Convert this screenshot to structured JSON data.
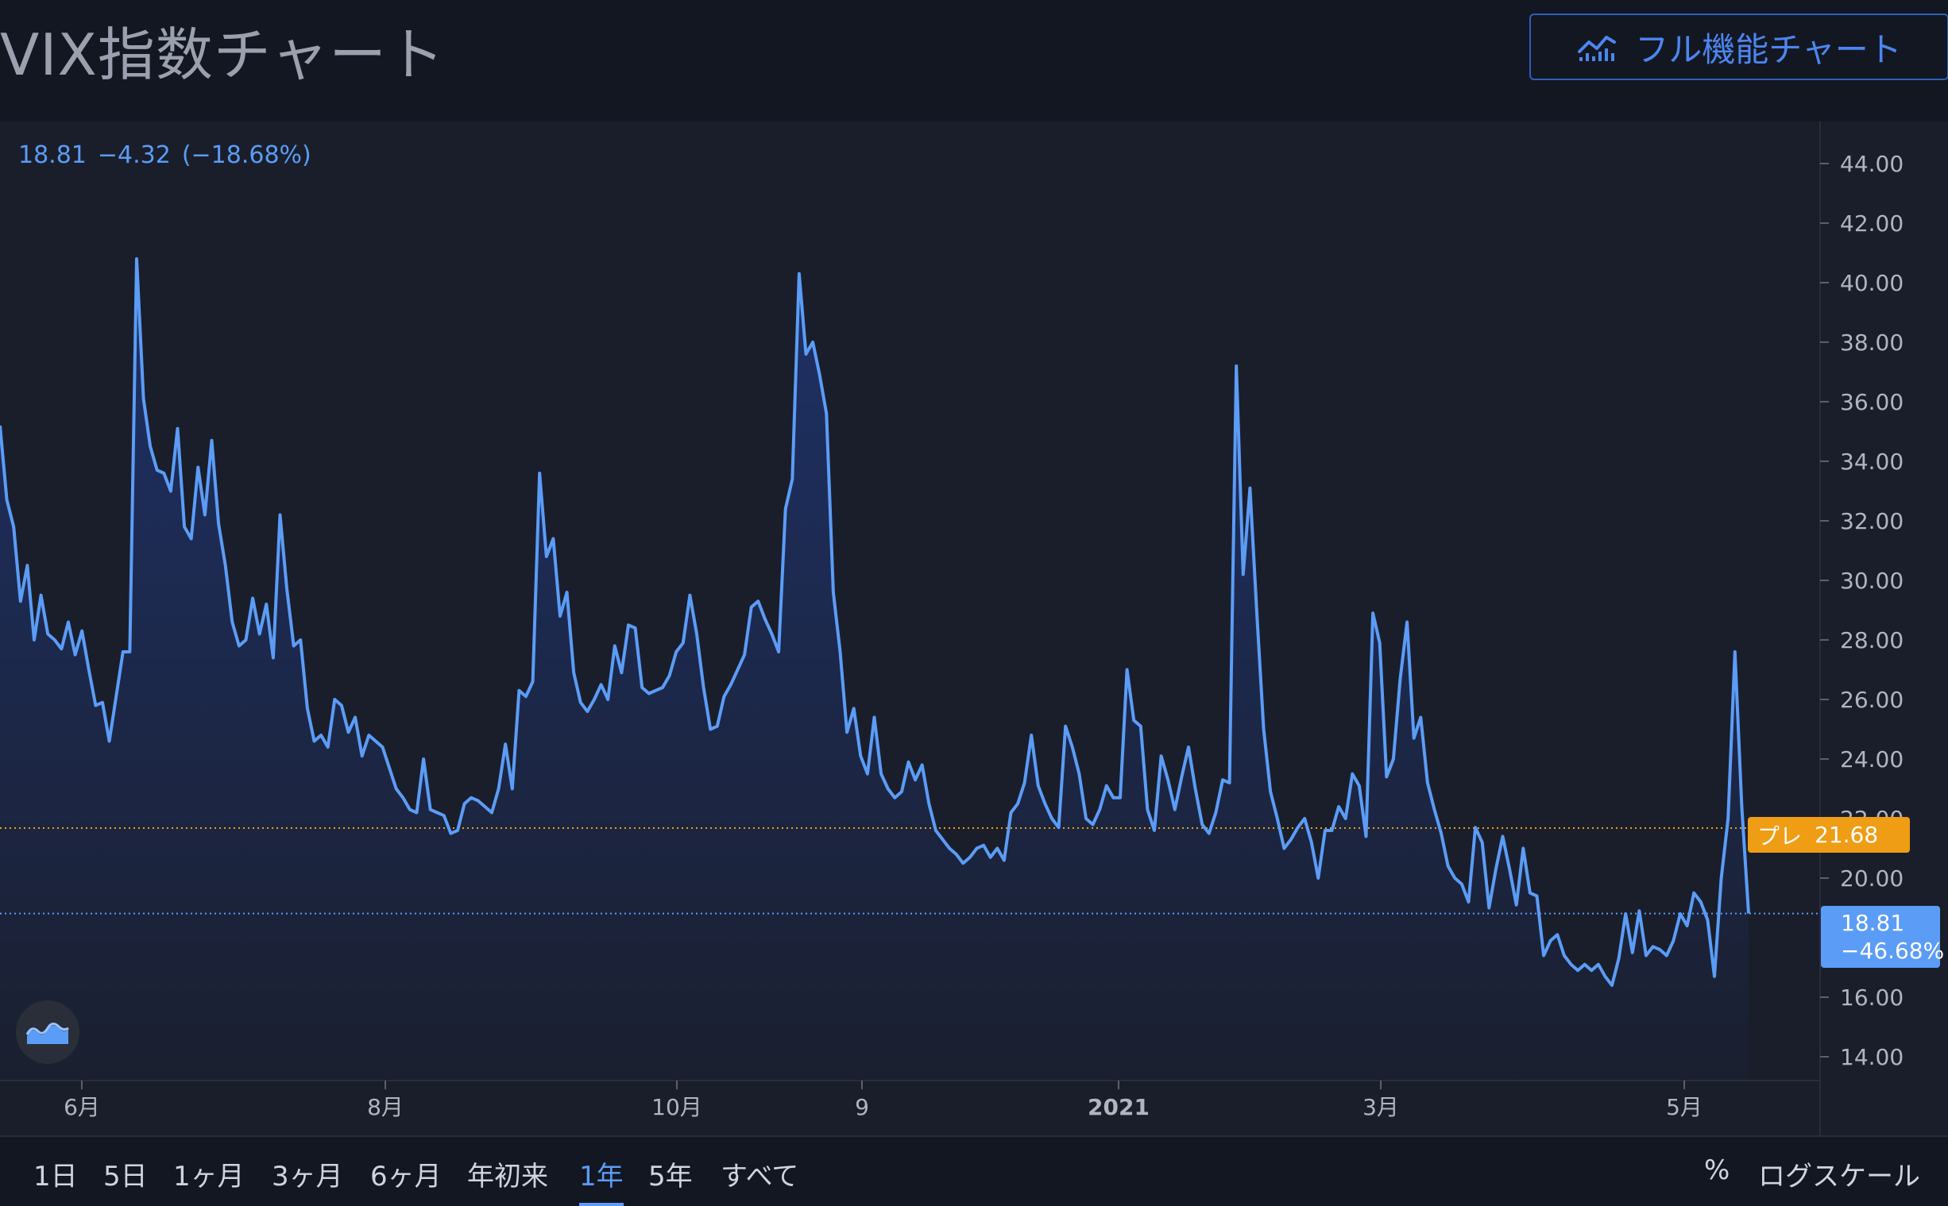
{
  "header": {
    "title": "VIX指数チャート",
    "full_chart_label": "フル機能チャート",
    "full_chart_icon": "chart-line-icon"
  },
  "legend": {
    "price": "18.81",
    "change": "−4.32",
    "change_pct": "(−18.68%)"
  },
  "colors": {
    "line": "#5b9cf6",
    "premarket": "#ef9d14",
    "background": "#131722",
    "pane": "#1a1e2b"
  },
  "price_tags": {
    "premarket_label": "プレ",
    "premarket_value": "21.68",
    "last_value": "18.81",
    "last_change": "−46.68%"
  },
  "timeframes": [
    "1日",
    "5日",
    "1ヶ月",
    "3ヶ月",
    "6ヶ月",
    "年初来",
    "1年",
    "5年",
    "すべて"
  ],
  "active_timeframe": "1年",
  "bottom_right": {
    "percent_label": "%",
    "log_label": "ログスケール"
  },
  "logo_icon": "tradingview-logo-icon",
  "chart_data": {
    "type": "area",
    "title": "",
    "xlabel": "",
    "ylabel": "",
    "ylim": [
      13.2,
      44.8
    ],
    "y_ticks": [
      "44.00",
      "42.00",
      "40.00",
      "38.00",
      "36.00",
      "34.00",
      "32.00",
      "30.00",
      "28.00",
      "26.00",
      "24.00",
      "22.00",
      "20.00",
      "16.00",
      "14.00"
    ],
    "x_tick_labels": [
      {
        "label": "6月",
        "bold": false
      },
      {
        "label": "8月",
        "bold": false
      },
      {
        "label": "10月",
        "bold": false
      },
      {
        "label": "9",
        "bold": false
      },
      {
        "label": "2021",
        "bold": true
      },
      {
        "label": "3月",
        "bold": false
      },
      {
        "label": "5月",
        "bold": false
      }
    ],
    "premarket_level": 21.68,
    "last_level": 18.81,
    "grid": false,
    "series": [
      {
        "values": [
          35.2,
          32.7,
          31.8,
          29.3,
          30.5,
          28.0,
          29.5,
          28.2,
          28.0,
          27.7,
          28.6,
          27.5,
          28.3,
          27.0,
          25.8,
          25.9,
          24.6,
          26.1,
          27.6,
          27.6,
          40.8,
          36.1,
          34.5,
          33.7,
          33.6,
          33.0,
          35.1,
          31.8,
          31.4,
          33.8,
          32.2,
          34.7,
          31.9,
          30.5,
          28.6,
          27.8,
          28.0,
          29.4,
          28.2,
          29.2,
          27.4,
          32.2,
          29.7,
          27.8,
          28.0,
          25.7,
          24.6,
          24.8,
          24.4,
          26.0,
          25.8,
          24.9,
          25.4,
          24.1,
          24.8,
          24.6,
          24.4,
          23.7,
          23.0,
          22.7,
          22.3,
          22.2,
          24.0,
          22.3,
          22.2,
          22.1,
          21.5,
          21.6,
          22.5,
          22.7,
          22.6,
          22.4,
          22.2,
          23.0,
          24.5,
          23.0,
          26.3,
          26.1,
          26.6,
          33.6,
          30.8,
          31.4,
          28.8,
          29.6,
          26.9,
          25.9,
          25.6,
          26.0,
          26.5,
          26.0,
          27.8,
          26.9,
          28.5,
          28.4,
          26.4,
          26.2,
          26.3,
          26.4,
          26.8,
          27.6,
          27.9,
          29.5,
          28.2,
          26.4,
          25.0,
          25.1,
          26.1,
          26.5,
          27.0,
          27.5,
          29.1,
          29.3,
          28.7,
          28.2,
          27.6,
          32.4,
          33.4,
          40.3,
          37.6,
          38.0,
          36.9,
          35.6,
          29.6,
          27.6,
          24.9,
          25.7,
          24.1,
          23.5,
          25.4,
          23.5,
          23.0,
          22.7,
          22.9,
          23.9,
          23.3,
          23.8,
          22.5,
          21.6,
          21.3,
          21.0,
          20.8,
          20.5,
          20.7,
          21.0,
          21.1,
          20.7,
          21.0,
          20.6,
          22.2,
          22.5,
          23.2,
          24.8,
          23.1,
          22.5,
          22.0,
          21.7,
          25.1,
          24.4,
          23.5,
          22.0,
          21.8,
          22.3,
          23.1,
          22.7,
          22.7,
          27.0,
          25.3,
          25.1,
          22.3,
          21.6,
          24.1,
          23.3,
          22.3,
          23.4,
          24.4,
          23.0,
          21.8,
          21.5,
          22.2,
          23.3,
          23.2,
          37.2,
          30.2,
          33.1,
          28.9,
          25.0,
          22.9,
          22.0,
          21.0,
          21.3,
          21.7,
          22.0,
          21.2,
          20.0,
          21.6,
          21.6,
          22.4,
          22.0,
          23.5,
          23.1,
          21.4,
          28.9,
          27.9,
          23.4,
          24.0,
          26.7,
          28.6,
          24.7,
          25.4,
          23.2,
          22.3,
          21.5,
          20.4,
          20.0,
          19.8,
          19.2,
          21.7,
          21.2,
          19.0,
          20.3,
          21.4,
          20.3,
          19.1,
          21.0,
          19.5,
          19.4,
          17.4,
          17.9,
          18.1,
          17.4,
          17.1,
          16.9,
          17.1,
          16.9,
          17.1,
          16.7,
          16.4,
          17.3,
          18.8,
          17.5,
          18.9,
          17.4,
          17.7,
          17.6,
          17.4,
          17.9,
          18.8,
          18.4,
          19.5,
          19.2,
          18.6,
          16.7,
          20.0,
          22.0,
          27.6,
          22.4,
          18.81
        ]
      }
    ]
  }
}
